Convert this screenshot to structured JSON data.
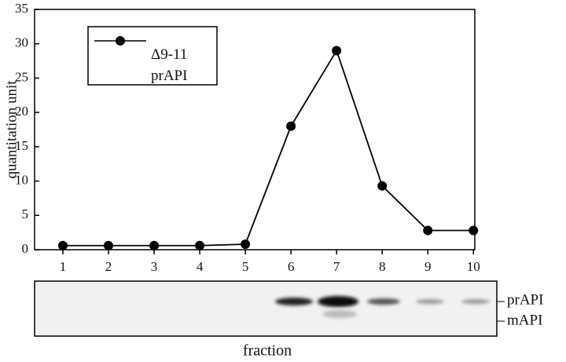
{
  "chart_data": {
    "type": "line",
    "x_label": "fraction",
    "y_label": "quantitation unit",
    "x": [
      1,
      2,
      3,
      4,
      5,
      6,
      7,
      8,
      9,
      10
    ],
    "xlim": [
      0.38,
      10.03
    ],
    "xticks": [
      1,
      2,
      3,
      4,
      5,
      6,
      7,
      8,
      9,
      10
    ],
    "ylim": [
      0,
      35
    ],
    "yticks": [
      0,
      5,
      10,
      15,
      20,
      25,
      30,
      35
    ],
    "series": [
      {
        "name": "Δ9-11\nprAPI",
        "color": "#000000",
        "values": [
          0.6,
          0.6,
          0.6,
          0.6,
          0.8,
          18,
          29,
          9.3,
          2.8,
          2.8
        ]
      }
    ],
    "gel_labels": [
      "prAPI",
      "mAPI"
    ]
  }
}
